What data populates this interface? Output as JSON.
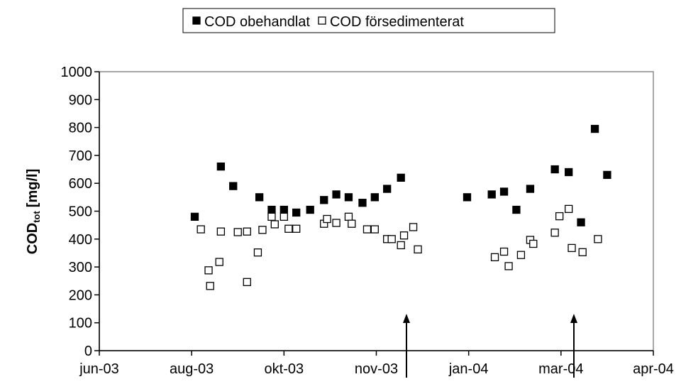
{
  "chart_data": {
    "type": "scatter",
    "y_label": {
      "main": "COD",
      "sub": "tot",
      "unit": "[mg/l]"
    },
    "series": [
      {
        "name": "COD obehandlat",
        "color": "#000000",
        "marker": "filled-square",
        "x": [
          62,
          79,
          87,
          104,
          112,
          120,
          128,
          137,
          146,
          154,
          162,
          171,
          179,
          187,
          196,
          239,
          255,
          263,
          271,
          280,
          296,
          305,
          313,
          322,
          330
        ],
        "values": [
          480,
          660,
          590,
          550,
          505,
          505,
          495,
          505,
          540,
          560,
          550,
          530,
          550,
          580,
          620,
          550,
          560,
          570,
          505,
          580,
          650,
          640,
          460,
          795,
          630
        ]
      },
      {
        "name": "COD försedimenterat",
        "color": "#000000",
        "marker": "open-square",
        "x": [
          66,
          71,
          72,
          78,
          79,
          90,
          96,
          96,
          103,
          106,
          112,
          114,
          120,
          123,
          128,
          146,
          148,
          154,
          162,
          164,
          174,
          179,
          187,
          190,
          196,
          198,
          204,
          207,
          257,
          263,
          266,
          274,
          280,
          282,
          296,
          299,
          305,
          307,
          314,
          324
        ],
        "values": [
          435,
          288,
          232,
          318,
          427,
          425,
          427,
          246,
          352,
          433,
          480,
          453,
          480,
          437,
          437,
          455,
          472,
          458,
          480,
          455,
          435,
          435,
          400,
          400,
          378,
          413,
          443,
          363,
          335,
          355,
          303,
          343,
          397,
          383,
          423,
          482,
          508,
          368,
          353,
          400
        ]
      }
    ],
    "xlim": [
      0,
      360
    ],
    "xticks": [
      {
        "value": 0,
        "label": "jun-03"
      },
      {
        "value": 60,
        "label": "aug-03"
      },
      {
        "value": 120,
        "label": "okt-03"
      },
      {
        "value": 180,
        "label": "nov-03"
      },
      {
        "value": 240,
        "label": "jan-04"
      },
      {
        "value": 300,
        "label": "mar-04"
      },
      {
        "value": 360,
        "label": "apr-04"
      }
    ],
    "ylim": [
      0,
      1000
    ],
    "yticks": [
      0,
      100,
      200,
      300,
      400,
      500,
      600,
      700,
      800,
      900,
      1000
    ],
    "legend": "top"
  }
}
